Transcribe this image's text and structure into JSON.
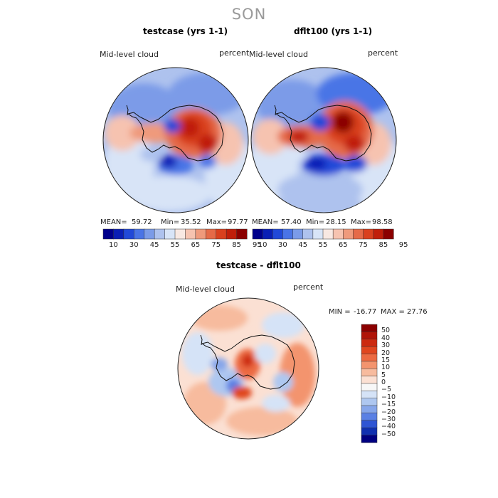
{
  "figure": {
    "title": "SON"
  },
  "chart_data": [
    {
      "type": "heatmap",
      "projection": "south-polar-stereographic",
      "title": "testcase (yrs 1-1)",
      "left_label": "Mid-level cloud",
      "right_label": "percent",
      "stats": {
        "mean_label": "MEAN=",
        "mean": "59.72",
        "min_label": "Min=",
        "min": "35.52",
        "max_label": "Max=",
        "max": "97.77"
      },
      "colorbar": {
        "levels": [
          "10",
          "30",
          "45",
          "55",
          "65",
          "75",
          "85",
          "95"
        ],
        "colors": [
          "#00008b",
          "#0a1fb5",
          "#2149d8",
          "#4a74e6",
          "#7b9be8",
          "#aec2ee",
          "#d8e4f7",
          "#f8e8e2",
          "#f6c3b0",
          "#ef9a7c",
          "#e56a48",
          "#d9401e",
          "#c01e0a",
          "#8b0000"
        ]
      }
    },
    {
      "type": "heatmap",
      "projection": "south-polar-stereographic",
      "title": "dflt100 (yrs 1-1)",
      "left_label": "Mid-level cloud",
      "right_label": "percent",
      "stats": {
        "mean_label": "MEAN=",
        "mean": "57.40",
        "min_label": "Min=",
        "min": "28.15",
        "max_label": "Max=",
        "max": "98.58"
      },
      "colorbar": {
        "levels": [
          "10",
          "30",
          "45",
          "55",
          "65",
          "75",
          "85",
          "95"
        ],
        "colors": [
          "#00008b",
          "#0a1fb5",
          "#2149d8",
          "#4a74e6",
          "#7b9be8",
          "#aec2ee",
          "#d8e4f7",
          "#f8e8e2",
          "#f6c3b0",
          "#ef9a7c",
          "#e56a48",
          "#d9401e",
          "#c01e0a",
          "#8b0000"
        ]
      }
    },
    {
      "type": "heatmap",
      "projection": "south-polar-stereographic",
      "title": "testcase - dflt100",
      "left_label": "Mid-level cloud",
      "right_label": "percent",
      "stats": {
        "min_label": "MIN =",
        "min": "-16.77",
        "max_label": "MAX =",
        "max": "27.76"
      },
      "colorbar": {
        "orientation": "vertical",
        "levels": [
          "50",
          "40",
          "30",
          "20",
          "15",
          "10",
          "5",
          "0",
          "−5",
          "−10",
          "−15",
          "−20",
          "−30",
          "−40",
          "−50"
        ],
        "colors": [
          "#8b0000",
          "#b01408",
          "#cc2a10",
          "#e0461f",
          "#ec6a42",
          "#f3946e",
          "#f7bb9e",
          "#fbe0d3",
          "#f7f7f7",
          "#d5e3f7",
          "#aec7f0",
          "#86a6ea",
          "#5a80e4",
          "#2f55d3",
          "#1030b0",
          "#000080"
        ]
      }
    }
  ]
}
